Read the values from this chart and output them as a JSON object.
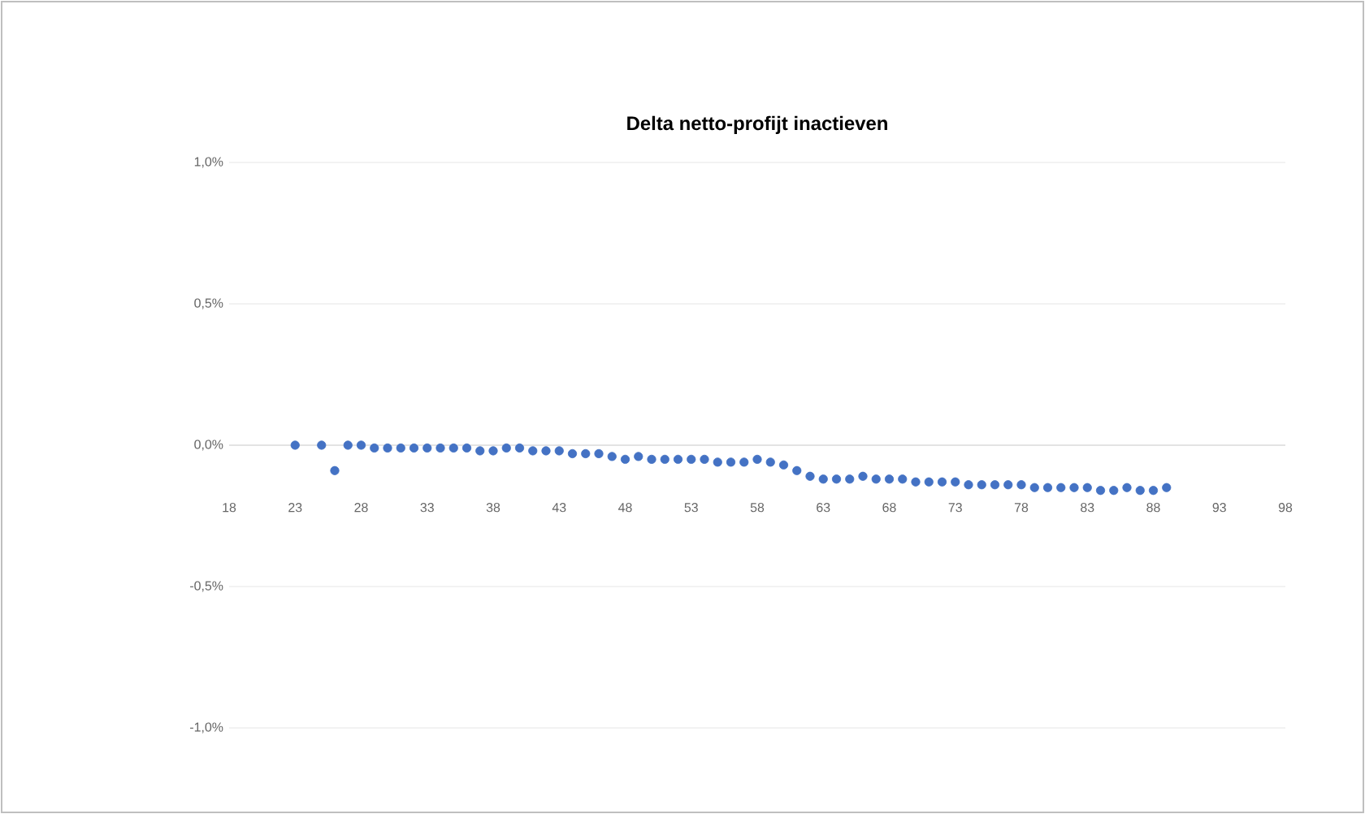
{
  "chart_data": {
    "type": "scatter",
    "title": "Delta netto-profijt inactieven",
    "x": [
      23,
      25,
      26,
      27,
      28,
      29,
      30,
      31,
      32,
      33,
      34,
      35,
      36,
      37,
      38,
      39,
      40,
      41,
      42,
      43,
      44,
      45,
      46,
      47,
      48,
      49,
      50,
      51,
      52,
      53,
      54,
      55,
      56,
      57,
      58,
      59,
      60,
      61,
      62,
      63,
      64,
      65,
      66,
      67,
      68,
      69,
      70,
      71,
      72,
      73,
      74,
      75,
      76,
      77,
      78,
      79,
      80,
      81,
      82,
      83,
      84,
      85,
      86,
      87,
      88,
      89
    ],
    "values": [
      0,
      0,
      -0.09,
      0,
      0,
      -0.01,
      -0.01,
      -0.01,
      -0.01,
      -0.01,
      -0.01,
      -0.01,
      -0.01,
      -0.02,
      -0.02,
      -0.01,
      -0.01,
      -0.02,
      -0.02,
      -0.02,
      -0.03,
      -0.03,
      -0.03,
      -0.04,
      -0.05,
      -0.04,
      -0.05,
      -0.05,
      -0.05,
      -0.05,
      -0.05,
      -0.06,
      -0.06,
      -0.06,
      -0.05,
      -0.06,
      -0.07,
      -0.09,
      -0.11,
      -0.12,
      -0.12,
      -0.12,
      -0.11,
      -0.12,
      -0.12,
      -0.12,
      -0.13,
      -0.13,
      -0.13,
      -0.13,
      -0.14,
      -0.14,
      -0.14,
      -0.14,
      -0.14,
      -0.15,
      -0.15,
      -0.15,
      -0.15,
      -0.15,
      -0.16,
      -0.16,
      -0.15,
      -0.16,
      -0.16,
      -0.15
    ],
    "color": "#4472c4",
    "marker": "circle",
    "grid": "y",
    "xlim": [
      18,
      98
    ],
    "xticks": [
      18,
      23,
      28,
      33,
      38,
      43,
      48,
      53,
      58,
      63,
      68,
      73,
      78,
      83,
      88,
      93,
      98
    ],
    "ylim": [
      -1,
      1
    ],
    "yticks": [
      {
        "value": -1,
        "label": "-1,0%"
      },
      {
        "value": -0.5,
        "label": "-0,5%"
      },
      {
        "value": 0,
        "label": "0,0%"
      },
      {
        "value": 0.5,
        "label": "0,5%"
      },
      {
        "value": 1,
        "label": "1,0%"
      }
    ]
  }
}
